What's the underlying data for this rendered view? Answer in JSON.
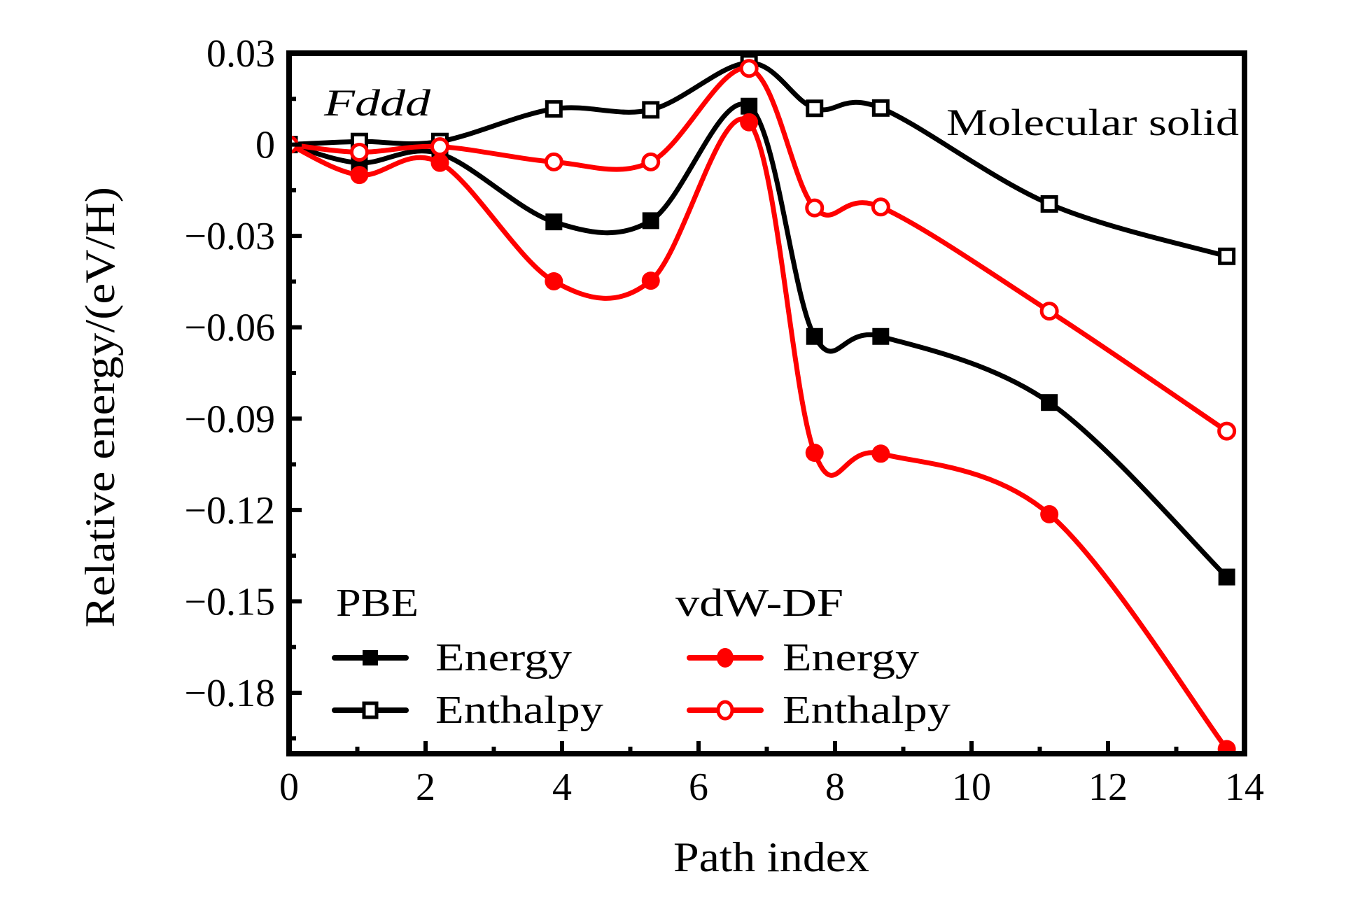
{
  "chart_data": {
    "type": "line",
    "title": "",
    "xlabel": "Path index",
    "ylabel": "Relative energy/(eV/H)",
    "xlim": [
      0,
      14
    ],
    "ylim": [
      -0.2,
      0.03
    ],
    "x_ticks": [
      0,
      2,
      4,
      6,
      8,
      10,
      12,
      14
    ],
    "x_tick_labels": [
      "0",
      "2",
      "4",
      "6",
      "8",
      "10",
      "12",
      "14"
    ],
    "y_ticks": [
      0.03,
      0,
      -0.03,
      -0.06,
      -0.09,
      -0.12,
      -0.15,
      -0.18
    ],
    "y_tick_labels": [
      "0.03",
      "0",
      "−0.03",
      "−0.06",
      "−0.09",
      "−0.12",
      "−0.15",
      "−0.18"
    ],
    "grid": false,
    "legend_placement": "bottom-left",
    "legend_groups": [
      {
        "title": "PBE",
        "entries": [
          "Energy",
          "Enthalpy"
        ]
      },
      {
        "title": "vdW-DF",
        "entries": [
          "Energy",
          "Enthalpy"
        ]
      }
    ],
    "annotations": [
      "Fddd",
      "Molecular solid"
    ],
    "x": [
      0,
      1.03,
      2.21,
      3.88,
      5.3,
      6.74,
      7.7,
      8.67,
      11.14,
      13.74
    ],
    "series": [
      {
        "name": "PBE Energy",
        "group": "PBE",
        "label": "Energy",
        "color": "#000000",
        "marker": "square",
        "filled": true,
        "values": [
          0,
          -0.006,
          -0.003,
          -0.0254,
          -0.025,
          0.0126,
          -0.063,
          -0.063,
          -0.0847,
          -0.142
        ]
      },
      {
        "name": "PBE Enthalpy",
        "group": "PBE",
        "label": "Enthalpy",
        "color": "#000000",
        "marker": "square",
        "filled": false,
        "values": [
          0,
          0.001,
          0.001,
          0.0117,
          0.0114,
          0.0268,
          0.0119,
          0.012,
          -0.0195,
          -0.0367
        ]
      },
      {
        "name": "vdW-DF Energy",
        "group": "vdW-DF",
        "label": "Energy",
        "color": "#ff0000",
        "marker": "circle",
        "filled": true,
        "values": [
          0,
          -0.01,
          -0.006,
          -0.0449,
          -0.0447,
          0.0073,
          -0.1012,
          -0.1015,
          -0.1214,
          -0.1985
        ]
      },
      {
        "name": "vdW-DF Enthalpy",
        "group": "vdW-DF",
        "label": "Enthalpy",
        "color": "#ff0000",
        "marker": "circle",
        "filled": false,
        "values": [
          0,
          -0.0025,
          -0.0007,
          -0.0057,
          -0.0057,
          0.025,
          -0.0208,
          -0.0205,
          -0.0547,
          -0.0941
        ]
      }
    ]
  }
}
